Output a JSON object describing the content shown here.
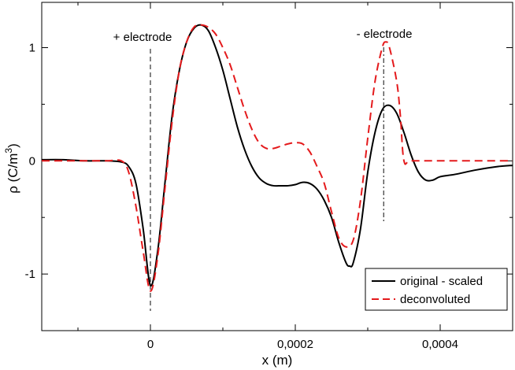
{
  "chart_data": {
    "type": "line",
    "title": "",
    "xlabel": "x (m)",
    "ylabel": {
      "base": "ρ (C/m",
      "sup": "3",
      "close": ")"
    },
    "xlim": [
      -0.00015,
      0.0005
    ],
    "ylim": [
      -1.5,
      1.4
    ],
    "x_ticks": [
      {
        "value": 0,
        "label": "0"
      },
      {
        "value": 0.0002,
        "label": "0,0002"
      },
      {
        "value": 0.0004,
        "label": "0,0004"
      }
    ],
    "y_ticks": [
      {
        "value": -1,
        "label": "-1"
      },
      {
        "value": 0,
        "label": "0"
      },
      {
        "value": 1,
        "label": "1"
      }
    ],
    "grid": false,
    "legend_position": "bottom-right",
    "series": [
      {
        "name": "original - scaled",
        "color": "#000000",
        "dash": "solid",
        "points": [
          [
            -0.00015,
            0.01
          ],
          [
            -0.00012,
            0.01
          ],
          [
            -9e-05,
            0.0
          ],
          [
            -6e-05,
            0.0
          ],
          [
            -4e-05,
            -0.01
          ],
          [
            -3e-05,
            -0.05
          ],
          [
            -2e-05,
            -0.2
          ],
          [
            -1e-05,
            -0.6
          ],
          [
            0.0,
            -1.1
          ],
          [
            1e-05,
            -0.8
          ],
          [
            2e-05,
            -0.2
          ],
          [
            3e-05,
            0.4
          ],
          [
            4e-05,
            0.8
          ],
          [
            5e-05,
            1.05
          ],
          [
            6e-05,
            1.17
          ],
          [
            7e-05,
            1.2
          ],
          [
            8e-05,
            1.15
          ],
          [
            9e-05,
            1.0
          ],
          [
            0.0001,
            0.8
          ],
          [
            0.00011,
            0.55
          ],
          [
            0.00012,
            0.3
          ],
          [
            0.00013,
            0.1
          ],
          [
            0.00014,
            -0.05
          ],
          [
            0.00015,
            -0.15
          ],
          [
            0.00016,
            -0.2
          ],
          [
            0.00017,
            -0.22
          ],
          [
            0.00018,
            -0.22
          ],
          [
            0.00019,
            -0.22
          ],
          [
            0.0002,
            -0.21
          ],
          [
            0.00021,
            -0.19
          ],
          [
            0.00022,
            -0.2
          ],
          [
            0.00023,
            -0.25
          ],
          [
            0.00024,
            -0.35
          ],
          [
            0.00025,
            -0.5
          ],
          [
            0.00026,
            -0.72
          ],
          [
            0.00027,
            -0.9
          ],
          [
            0.000275,
            -0.93
          ],
          [
            0.00028,
            -0.9
          ],
          [
            0.00029,
            -0.6
          ],
          [
            0.0003,
            -0.1
          ],
          [
            0.00031,
            0.25
          ],
          [
            0.00032,
            0.45
          ],
          [
            0.00033,
            0.49
          ],
          [
            0.00034,
            0.42
          ],
          [
            0.00035,
            0.25
          ],
          [
            0.00036,
            0.05
          ],
          [
            0.00037,
            -0.1
          ],
          [
            0.00038,
            -0.17
          ],
          [
            0.00039,
            -0.17
          ],
          [
            0.0004,
            -0.14
          ],
          [
            0.00042,
            -0.12
          ],
          [
            0.00045,
            -0.08
          ],
          [
            0.00048,
            -0.05
          ],
          [
            0.0005,
            -0.04
          ]
        ]
      },
      {
        "name": "deconvoluted",
        "color": "#e41a1c",
        "dash": "dashed",
        "points": [
          [
            -0.00015,
            0.0
          ],
          [
            -0.00012,
            0.0
          ],
          [
            -9e-05,
            0.0
          ],
          [
            -6e-05,
            0.0
          ],
          [
            -4e-05,
            0.0
          ],
          [
            -3e-05,
            -0.1
          ],
          [
            -2e-05,
            -0.4
          ],
          [
            -1e-05,
            -0.8
          ],
          [
            0.0,
            -1.15
          ],
          [
            1e-05,
            -0.85
          ],
          [
            2e-05,
            -0.25
          ],
          [
            3e-05,
            0.35
          ],
          [
            4e-05,
            0.8
          ],
          [
            5e-05,
            1.05
          ],
          [
            6e-05,
            1.18
          ],
          [
            7e-05,
            1.2
          ],
          [
            8e-05,
            1.18
          ],
          [
            9e-05,
            1.12
          ],
          [
            0.0001,
            1.0
          ],
          [
            0.00011,
            0.85
          ],
          [
            0.00012,
            0.65
          ],
          [
            0.00013,
            0.45
          ],
          [
            0.00014,
            0.28
          ],
          [
            0.00015,
            0.16
          ],
          [
            0.00016,
            0.11
          ],
          [
            0.00017,
            0.11
          ],
          [
            0.00018,
            0.13
          ],
          [
            0.00019,
            0.15
          ],
          [
            0.0002,
            0.16
          ],
          [
            0.00021,
            0.15
          ],
          [
            0.00022,
            0.08
          ],
          [
            0.00023,
            -0.05
          ],
          [
            0.00024,
            -0.2
          ],
          [
            0.00025,
            -0.45
          ],
          [
            0.00026,
            -0.68
          ],
          [
            0.00027,
            -0.76
          ],
          [
            0.00028,
            -0.7
          ],
          [
            0.00029,
            -0.35
          ],
          [
            0.0003,
            0.2
          ],
          [
            0.00031,
            0.7
          ],
          [
            0.00032,
            1.0
          ],
          [
            0.000325,
            1.05
          ],
          [
            0.00033,
            1.0
          ],
          [
            0.00034,
            0.7
          ],
          [
            0.000345,
            0.4
          ],
          [
            0.00035,
            0.0
          ],
          [
            0.00036,
            0.0
          ],
          [
            0.0004,
            0.0
          ],
          [
            0.00045,
            0.0
          ],
          [
            0.0005,
            0.0
          ]
        ]
      }
    ],
    "annotations": [
      {
        "text": "+ electrode",
        "x": 0.0
      },
      {
        "text": "- electrode",
        "x": 0.000322
      }
    ]
  }
}
